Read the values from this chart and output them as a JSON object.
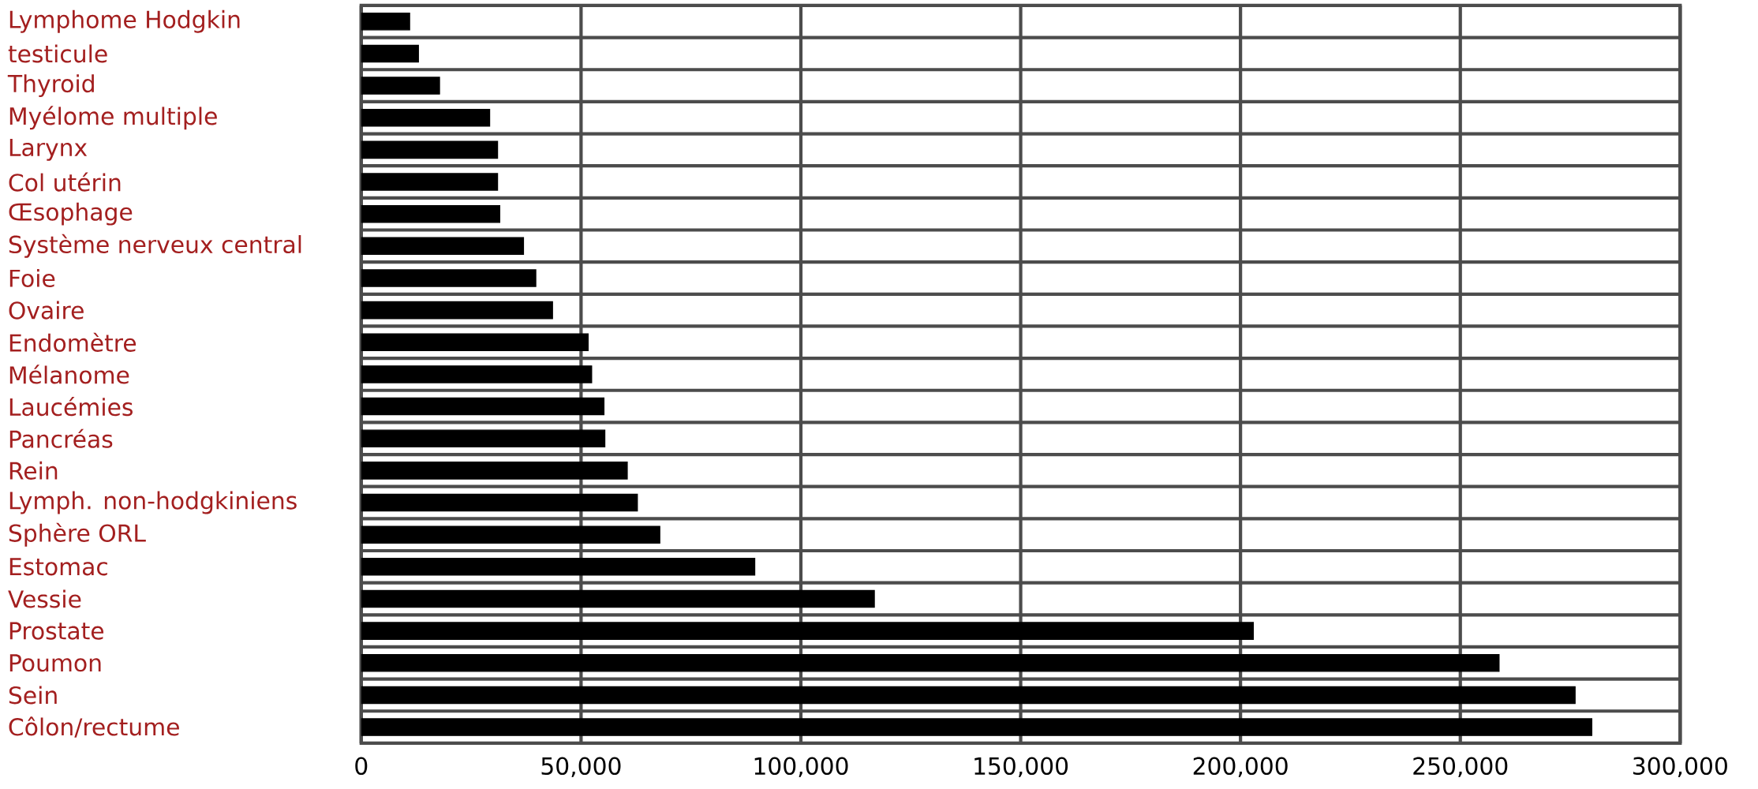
{
  "chart_data": {
    "type": "bar",
    "orientation": "horizontal",
    "color": "#000000",
    "grid": true,
    "categories": [
      "Lymphome Hodgkin",
      "testicule",
      "Thyroid",
      "Myélome multiple",
      "Larynx",
      "Col utérin",
      "Œsophage",
      "Système nerveux central",
      "Foie",
      "Ovaire",
      "Endomètre",
      "Mélanome",
      "Laucémies",
      "Pancréas",
      "Rein",
      "Lymph. non-hodgkiniens",
      "Sphère ORL",
      "Estomac",
      "Vessie",
      "Prostate",
      "Poumon",
      "Sein",
      "Côlon/rectume"
    ],
    "values": [
      11000,
      13000,
      17800,
      29200,
      31000,
      31000,
      31500,
      36900,
      39700,
      43500,
      51600,
      52400,
      55200,
      55400,
      60500,
      62800,
      67900,
      89500,
      116700,
      202900,
      258800,
      276100,
      279900
    ],
    "xlim": [
      0,
      300000
    ],
    "xticks": [
      {
        "value": 0,
        "label": "0"
      },
      {
        "value": 50000,
        "label": "50,000"
      },
      {
        "value": 100000,
        "label": "100,000"
      },
      {
        "value": 150000,
        "label": "150,000"
      },
      {
        "value": 200000,
        "label": "200,000"
      },
      {
        "value": 250000,
        "label": "250,000"
      },
      {
        "value": 300000,
        "label": "300,000"
      }
    ]
  }
}
